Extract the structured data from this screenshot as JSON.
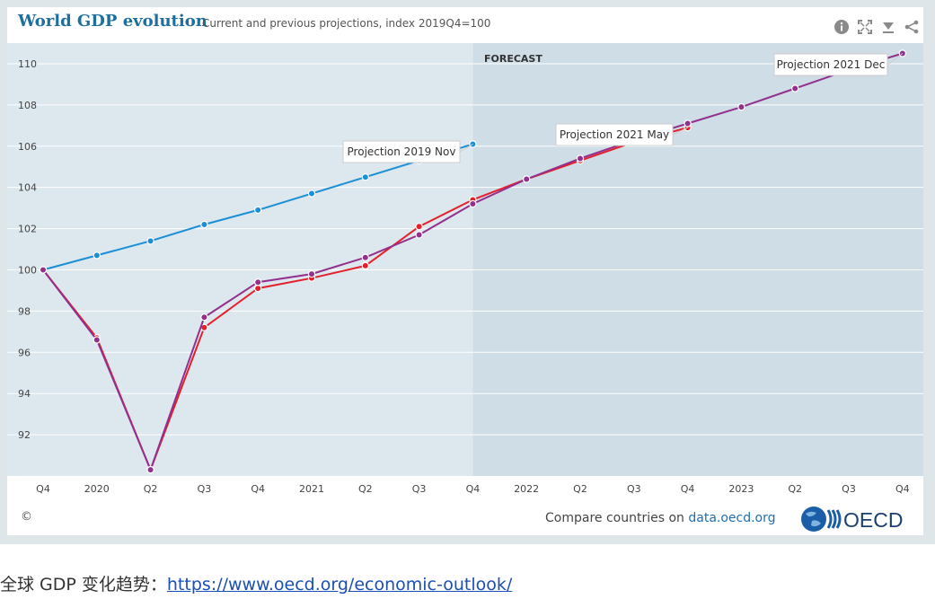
{
  "header": {
    "title": "World GDP evolution",
    "subtitle": "Current and previous projections, index 2019Q4=100"
  },
  "toolbar": {
    "icons": [
      "info-icon",
      "fullscreen-icon",
      "download-icon",
      "share-icon"
    ]
  },
  "forecast_label": "FORECAST",
  "footer": {
    "copyright": "©",
    "compare_prefix": "Compare countries on",
    "compare_link": "data.oecd.org",
    "logo_text": "OECD"
  },
  "caption": {
    "text": "全球 GDP 变化趋势：",
    "link": "https://www.oecd.org/economic-outlook/"
  },
  "colors": {
    "plot_background": "#dce7ee",
    "forecast_background": "#cfdde6",
    "nov2019": "#1a8fd6",
    "may2021": "#e3202b",
    "dec2021": "#93308d",
    "title": "#1f6f9c"
  },
  "chart_data": {
    "type": "line",
    "title": "World GDP evolution",
    "subtitle": "Current and previous projections, index 2019Q4=100",
    "x": [
      "Q4",
      "2020",
      "Q2",
      "Q3",
      "Q4",
      "2021",
      "Q2",
      "Q3",
      "Q4",
      "2022",
      "Q2",
      "Q3",
      "Q4",
      "2023",
      "Q2",
      "Q3",
      "Q4"
    ],
    "ylim": [
      90,
      111
    ],
    "yticks": [
      92,
      94,
      96,
      98,
      100,
      102,
      104,
      106,
      108,
      110
    ],
    "grid": true,
    "forecast_start_index": 8,
    "series": [
      {
        "name": "Projection 2019 Nov",
        "color": "#1a8fd6",
        "values": [
          100,
          100.7,
          101.4,
          102.2,
          102.9,
          103.7,
          104.5,
          105.3,
          106.1,
          null,
          null,
          null,
          null,
          null,
          null,
          null,
          null
        ]
      },
      {
        "name": "Projection 2021 May",
        "color": "#e3202b",
        "values": [
          100,
          96.7,
          90.3,
          97.2,
          99.1,
          99.6,
          100.2,
          102.1,
          103.4,
          104.4,
          105.3,
          106.2,
          106.9,
          null,
          null,
          null,
          null
        ]
      },
      {
        "name": "Projection 2021 Dec",
        "color": "#93308d",
        "values": [
          100,
          96.6,
          90.3,
          97.7,
          99.4,
          99.8,
          100.6,
          101.7,
          103.2,
          104.4,
          105.4,
          106.3,
          107.1,
          107.9,
          108.8,
          109.7,
          110.5
        ]
      }
    ]
  }
}
